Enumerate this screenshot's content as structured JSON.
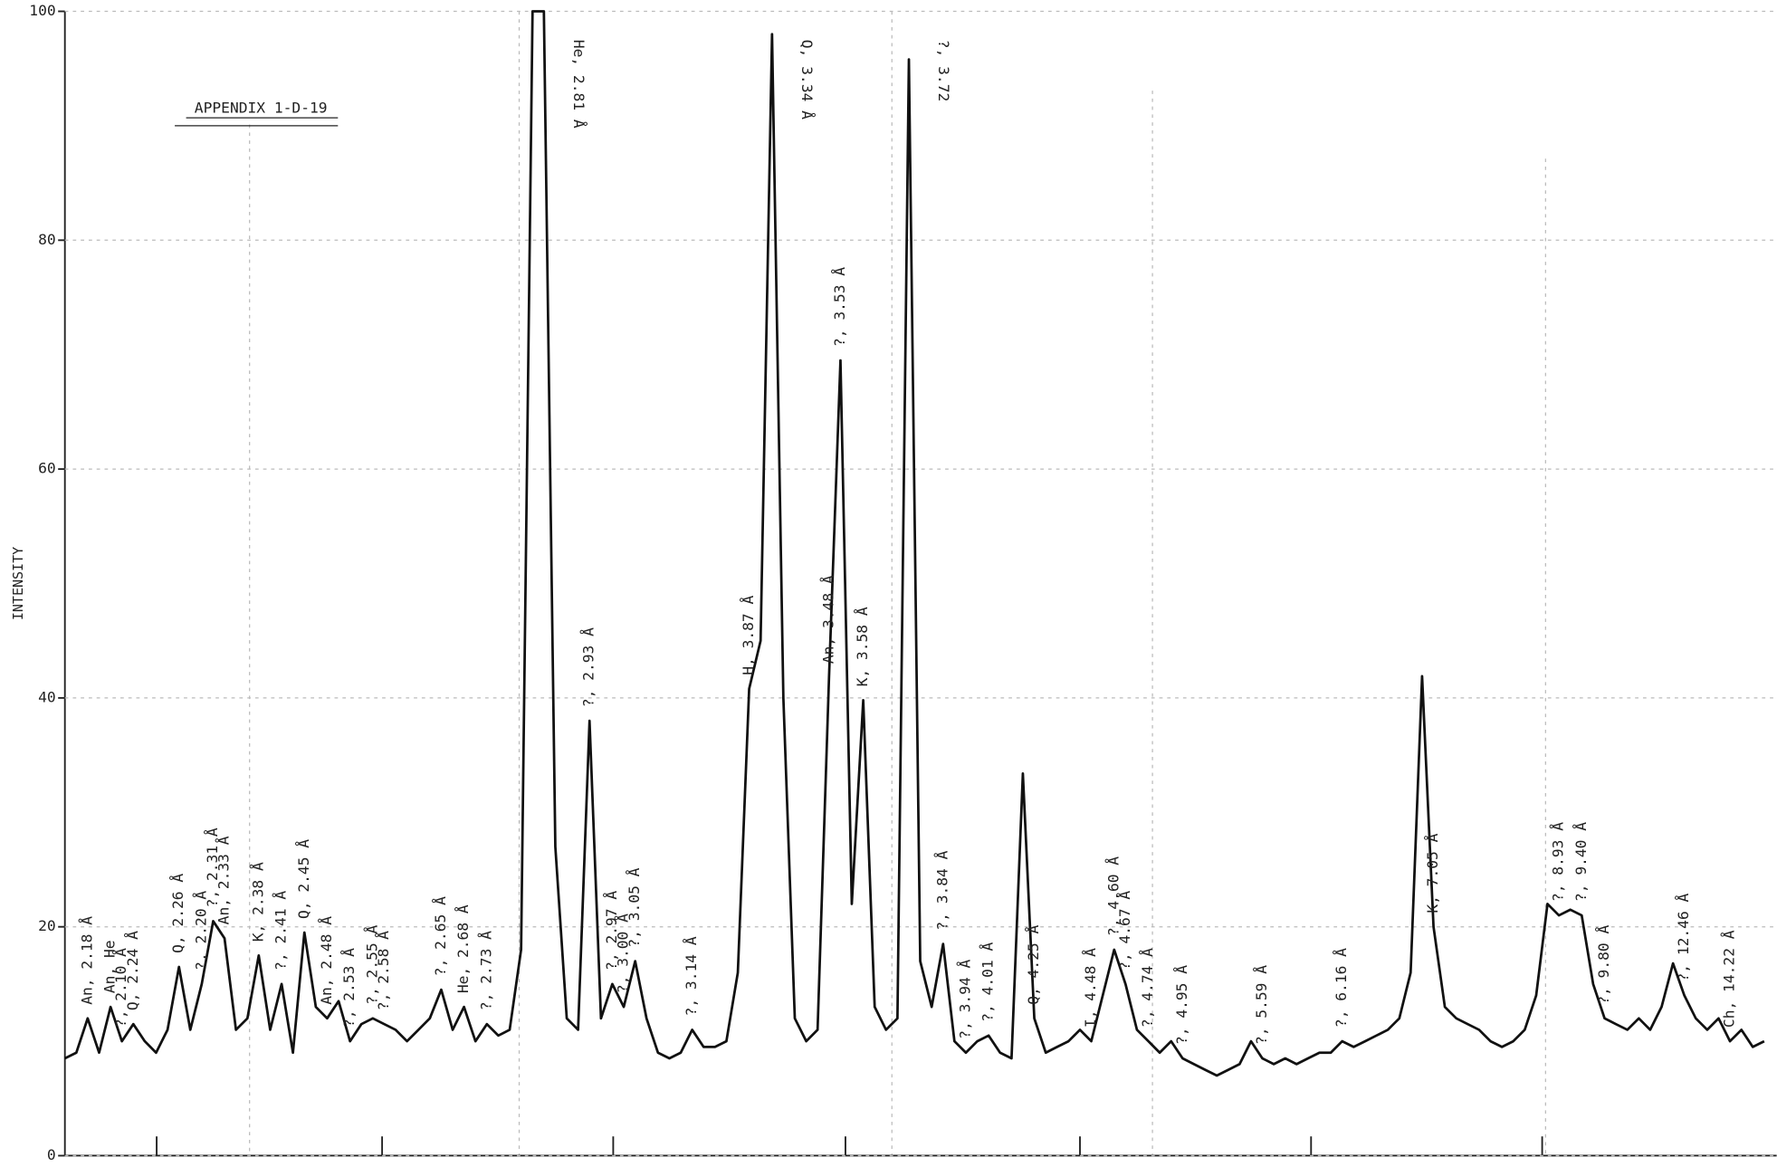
{
  "chart_data": {
    "type": "line",
    "title": "APPENDIX 1-D-19",
    "ylabel": "INTENSITY",
    "ylim": [
      0,
      100
    ],
    "yticks": [
      0,
      20,
      40,
      60,
      80,
      100
    ],
    "grid": true,
    "color": "#111111",
    "values": [
      8.5,
      9,
      12,
      9,
      13,
      10,
      11.5,
      10,
      9,
      11,
      16.5,
      11,
      15,
      20.5,
      19,
      11,
      12,
      17.5,
      11,
      15,
      9,
      19.5,
      13,
      12,
      13.5,
      10,
      11.5,
      12,
      11.5,
      11,
      10,
      11,
      12,
      14.5,
      11,
      13,
      10,
      11.5,
      10.5,
      11,
      18,
      100,
      100,
      27,
      12,
      11,
      38,
      12,
      15,
      13,
      17,
      12,
      9,
      8.5,
      9,
      11,
      9.5,
      9.5,
      10,
      16,
      40.8,
      45,
      98,
      40,
      12,
      10,
      11,
      41.8,
      69.5,
      22,
      39.8,
      13,
      11,
      12,
      95.8,
      17,
      13,
      18.5,
      10,
      9,
      10,
      10.5,
      9,
      8.5,
      33.4,
      12,
      9,
      9.5,
      10,
      11,
      10,
      14,
      18,
      15,
      11,
      10,
      9,
      10,
      8.5,
      8,
      7.5,
      7,
      7.5,
      8,
      10,
      8.5,
      8,
      8.5,
      8,
      8.5,
      9,
      9,
      10,
      9.5,
      10,
      10.5,
      11,
      12,
      16,
      41.9,
      20,
      13,
      12,
      11.5,
      11,
      10,
      9.5,
      10,
      11,
      14,
      22,
      21,
      21.5,
      21,
      15,
      12,
      11.5,
      11,
      12,
      11,
      13,
      16.8,
      14,
      12,
      11,
      12,
      10,
      11,
      9.5,
      10
    ],
    "annotations": [
      {
        "text": "An, 2.18 Å",
        "point": 2
      },
      {
        "text": "An, He",
        "point": 4
      },
      {
        "text": "?, 2.10 Å",
        "point": 5
      },
      {
        "text": "Q, 2.24 Å",
        "point": 6
      },
      {
        "text": "Q, 2.26 Å",
        "point": 10
      },
      {
        "text": "?, 2.20 Å",
        "point": 12
      },
      {
        "text": "?, 2.31 Å",
        "point": 13
      },
      {
        "text": "An, 2.33 Å",
        "point": 14
      },
      {
        "text": "K, 2.38 Å",
        "point": 17
      },
      {
        "text": "?, 2.41 Å",
        "point": 19
      },
      {
        "text": "Q, 2.45 Å",
        "point": 21
      },
      {
        "text": "An, 2.48 Å",
        "point": 23
      },
      {
        "text": "?, 2.53 Å",
        "point": 25
      },
      {
        "text": "?, 2.55 Å",
        "point": 27
      },
      {
        "text": "?, 2.58 Å",
        "point": 28
      },
      {
        "text": "?, 2.65 Å",
        "point": 33
      },
      {
        "text": "He, 2.68 Å",
        "point": 35
      },
      {
        "text": "?, 2.73 Å",
        "point": 37
      },
      {
        "text": "He, 2.81 Å",
        "point": 42
      },
      {
        "text": "?, 2.93 Å",
        "point": 46
      },
      {
        "text": "?, 2.97 Å",
        "point": 48
      },
      {
        "text": "?, 3.00 Å",
        "point": 49
      },
      {
        "text": "?, 3.05 Å",
        "point": 50
      },
      {
        "text": "?, 3.14 Å",
        "point": 55
      },
      {
        "text": "H, 3.87 Å",
        "point": 60
      },
      {
        "text": "Q, 3.34 Å",
        "point": 62
      },
      {
        "text": "An, 3.48 Å",
        "point": 67
      },
      {
        "text": "?, 3.53 Å",
        "point": 68
      },
      {
        "text": "K, 3.58 Å",
        "point": 70
      },
      {
        "text": "?, 3.72",
        "point": 74
      },
      {
        "text": "?, 3.84 Å",
        "point": 77
      },
      {
        "text": "?, 3.94 Å",
        "point": 79
      },
      {
        "text": "?, 4.01 Å",
        "point": 81
      },
      {
        "text": "Q, 4.25 Å",
        "point": 85
      },
      {
        "text": "I, 4.48 Å",
        "point": 90
      },
      {
        "text": "?, 4.60 Å",
        "point": 92
      },
      {
        "text": "?, 4.67 Å",
        "point": 93
      },
      {
        "text": "?, 4.74 Å",
        "point": 95
      },
      {
        "text": "?, 4.95 Å",
        "point": 98
      },
      {
        "text": "?, 5.59 Å",
        "point": 105
      },
      {
        "text": "?, 6.16 Å",
        "point": 112
      },
      {
        "text": "K, 7.05 Å",
        "point": 120
      },
      {
        "text": "?, 8.93 Å",
        "point": 131
      },
      {
        "text": "?, 9.40 Å",
        "point": 133
      },
      {
        "text": "?, 9.80 Å",
        "point": 135
      },
      {
        "text": "?, 12.46 Å",
        "point": 142
      },
      {
        "text": "Ch, 14.22 Å",
        "point": 146
      }
    ]
  }
}
